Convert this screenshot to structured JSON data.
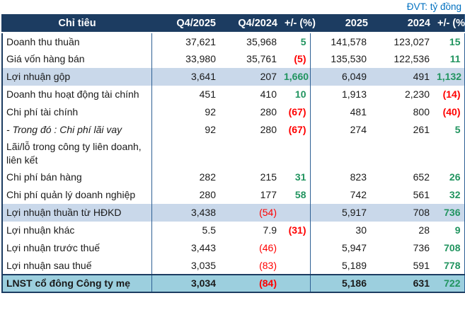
{
  "meta": {
    "unit_label": "ĐVT: tỷ đồng"
  },
  "colors": {
    "header_bg": "#1C3C61",
    "row_highlight": "#C9D8EA",
    "total_bg": "#9CCFDE",
    "positive": "#21945F",
    "negative": "#FF0000",
    "unit_text": "#0070C0",
    "divider": "#2E6094"
  },
  "table": {
    "header": [
      "Chỉ tiêu",
      "Q4/2025",
      "Q4/2024",
      "+/- (%)",
      "2025",
      "2024",
      "+/- (%)"
    ],
    "rows": [
      {
        "label": "Doanh thu thuần",
        "cells": [
          {
            "v": "37,621"
          },
          {
            "v": "35,968"
          },
          {
            "v": "5",
            "c": "pos"
          },
          {
            "v": "141,578"
          },
          {
            "v": "123,027"
          },
          {
            "v": "15",
            "c": "pos"
          }
        ]
      },
      {
        "label": "Giá vốn hàng bán",
        "cells": [
          {
            "v": "33,980"
          },
          {
            "v": "35,761"
          },
          {
            "v": "(5)",
            "c": "neg"
          },
          {
            "v": "135,530"
          },
          {
            "v": "122,536"
          },
          {
            "v": "11",
            "c": "pos"
          }
        ]
      },
      {
        "label": "Lợi nhuận gộp",
        "highlight": true,
        "cells": [
          {
            "v": "3,641"
          },
          {
            "v": "207"
          },
          {
            "v": "1,660",
            "c": "pos"
          },
          {
            "v": "6,049"
          },
          {
            "v": "491"
          },
          {
            "v": "1,132",
            "c": "pos"
          }
        ]
      },
      {
        "label": "Doanh thu hoạt động tài chính",
        "cells": [
          {
            "v": "451"
          },
          {
            "v": "410"
          },
          {
            "v": "10",
            "c": "pos"
          },
          {
            "v": "1,913"
          },
          {
            "v": "2,230"
          },
          {
            "v": "(14)",
            "c": "neg"
          }
        ]
      },
      {
        "label": "Chi phí tài chính",
        "cells": [
          {
            "v": "92"
          },
          {
            "v": "280"
          },
          {
            "v": "(67)",
            "c": "neg"
          },
          {
            "v": "481"
          },
          {
            "v": "800"
          },
          {
            "v": "(40)",
            "c": "neg"
          }
        ]
      },
      {
        "label": "- Trong đó : Chi phí lãi vay",
        "italic": true,
        "cells": [
          {
            "v": "92"
          },
          {
            "v": "280"
          },
          {
            "v": "(67)",
            "c": "neg"
          },
          {
            "v": "274"
          },
          {
            "v": "261"
          },
          {
            "v": "5",
            "c": "pos"
          }
        ]
      },
      {
        "label": "Lãi/lỗ trong công ty liên doanh, liên kết",
        "cells": [
          {
            "v": ""
          },
          {
            "v": ""
          },
          {
            "v": ""
          },
          {
            "v": ""
          },
          {
            "v": ""
          },
          {
            "v": ""
          }
        ]
      },
      {
        "label": "Chi phí bán hàng",
        "cells": [
          {
            "v": "282"
          },
          {
            "v": "215"
          },
          {
            "v": "31",
            "c": "pos"
          },
          {
            "v": "823"
          },
          {
            "v": "652"
          },
          {
            "v": "26",
            "c": "pos"
          }
        ]
      },
      {
        "label": "Chi phí quản lý doanh nghiệp",
        "cells": [
          {
            "v": "280"
          },
          {
            "v": "177"
          },
          {
            "v": "58",
            "c": "pos"
          },
          {
            "v": "742"
          },
          {
            "v": "561"
          },
          {
            "v": "32",
            "c": "pos"
          }
        ]
      },
      {
        "label": "Lợi nhuận thuần từ HĐKD",
        "highlight": true,
        "cells": [
          {
            "v": "3,438"
          },
          {
            "v": "(54)",
            "c": "negp"
          },
          {
            "v": ""
          },
          {
            "v": "5,917"
          },
          {
            "v": "708"
          },
          {
            "v": "736",
            "c": "pos"
          }
        ]
      },
      {
        "label": "Lợi nhuận khác",
        "cells": [
          {
            "v": "5.5"
          },
          {
            "v": "7.9"
          },
          {
            "v": "(31)",
            "c": "neg"
          },
          {
            "v": "30"
          },
          {
            "v": "28"
          },
          {
            "v": "9",
            "c": "pos"
          }
        ]
      },
      {
        "label": "Lợi nhuận trước thuế",
        "cells": [
          {
            "v": "3,443"
          },
          {
            "v": "(46)",
            "c": "negp"
          },
          {
            "v": ""
          },
          {
            "v": "5,947"
          },
          {
            "v": "736"
          },
          {
            "v": "708",
            "c": "pos"
          }
        ]
      },
      {
        "label": "Lợi nhuận sau thuế",
        "cells": [
          {
            "v": "3,035"
          },
          {
            "v": "(83)",
            "c": "negp"
          },
          {
            "v": ""
          },
          {
            "v": "5,189"
          },
          {
            "v": "591"
          },
          {
            "v": "778",
            "c": "pos"
          }
        ]
      },
      {
        "label": "LNST cổ đông Công ty mẹ",
        "total": true,
        "cells": [
          {
            "v": "3,034"
          },
          {
            "v": "(84)",
            "c": "negp"
          },
          {
            "v": ""
          },
          {
            "v": "5,186"
          },
          {
            "v": "631"
          },
          {
            "v": "722",
            "c": "pos"
          }
        ]
      }
    ]
  }
}
